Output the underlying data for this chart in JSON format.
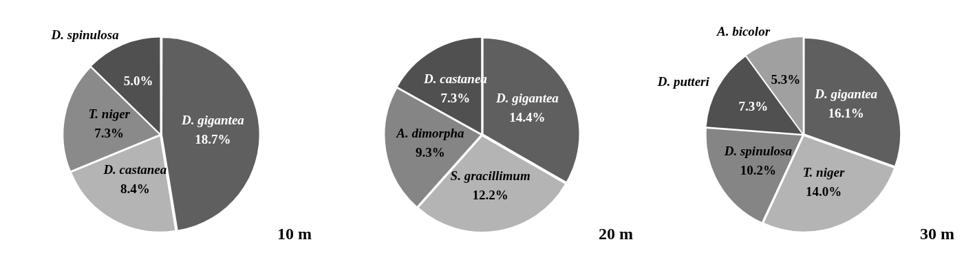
{
  "chart_data": [
    {
      "type": "pie",
      "title": "10 m",
      "categories": [
        "D. gigantea",
        "D. castanea",
        "T. niger",
        "D. spinulosa"
      ],
      "values": [
        18.7,
        8.4,
        7.3,
        5.0
      ],
      "value_labels": [
        "18.7%",
        "8.4%",
        "7.3%",
        "5.0%"
      ],
      "colors": [
        "#5f5f5f",
        "#b4b4b4",
        "#8a8a8a",
        "#505050"
      ]
    },
    {
      "type": "pie",
      "title": "20 m",
      "categories": [
        "D. gigantea",
        "S. gracillimum",
        "A. dimorpha",
        "D. castanea"
      ],
      "values": [
        14.4,
        12.2,
        9.3,
        7.3
      ],
      "value_labels": [
        "14.4%",
        "12.2%",
        "9.3%",
        "7.3%"
      ],
      "colors": [
        "#5f5f5f",
        "#b4b4b4",
        "#858585",
        "#505050"
      ]
    },
    {
      "type": "pie",
      "title": "30 m",
      "categories": [
        "D. gigantea",
        "T. niger",
        "D. spinulosa",
        "D. putteri",
        "A. bicolor"
      ],
      "values": [
        16.1,
        14.0,
        10.2,
        7.3,
        5.3
      ],
      "value_labels": [
        "16.1%",
        "14.0%",
        "10.2%",
        "7.3%",
        "5.3%"
      ],
      "colors": [
        "#5f5f5f",
        "#b4b4b4",
        "#858585",
        "#505050",
        "#a0a0a0"
      ]
    }
  ]
}
